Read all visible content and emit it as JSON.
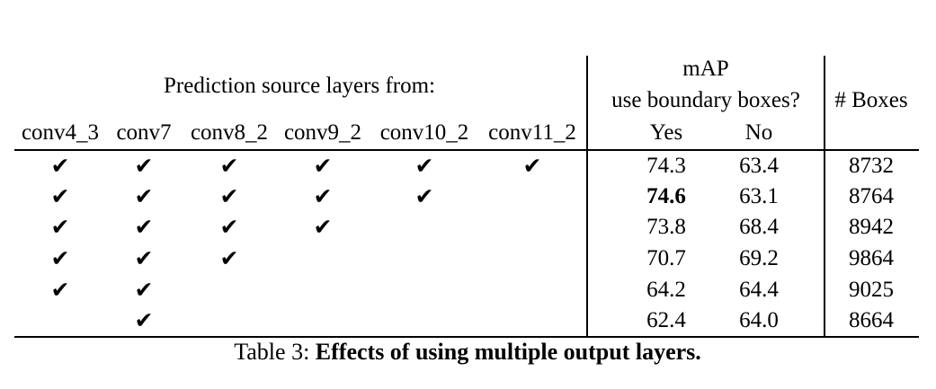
{
  "table": {
    "group_header_left": "Prediction source layers from:",
    "group_header_map": "mAP",
    "subheader_map": "use boundary boxes?",
    "header_boxes": "# Boxes",
    "layer_columns": [
      "conv4_3",
      "conv7",
      "conv8_2",
      "conv9_2",
      "conv10_2",
      "conv11_2"
    ],
    "map_columns": [
      "Yes",
      "No"
    ],
    "check_glyph": "✔",
    "rows": [
      {
        "layers": [
          true,
          true,
          true,
          true,
          true,
          true
        ],
        "yes": "74.3",
        "no": "63.4",
        "boxes": "8732",
        "yes_bold": false
      },
      {
        "layers": [
          true,
          true,
          true,
          true,
          true,
          false
        ],
        "yes": "74.6",
        "no": "63.1",
        "boxes": "8764",
        "yes_bold": true
      },
      {
        "layers": [
          true,
          true,
          true,
          true,
          false,
          false
        ],
        "yes": "73.8",
        "no": "68.4",
        "boxes": "8942",
        "yes_bold": false
      },
      {
        "layers": [
          true,
          true,
          true,
          false,
          false,
          false
        ],
        "yes": "70.7",
        "no": "69.2",
        "boxes": "9864",
        "yes_bold": false
      },
      {
        "layers": [
          true,
          true,
          false,
          false,
          false,
          false
        ],
        "yes": "64.2",
        "no": "64.4",
        "boxes": "9025",
        "yes_bold": false
      },
      {
        "layers": [
          false,
          true,
          false,
          false,
          false,
          false
        ],
        "yes": "62.4",
        "no": "64.0",
        "boxes": "8664",
        "yes_bold": false
      }
    ]
  },
  "caption": {
    "label": "Table 3:",
    "text": "Effects of using multiple output layers."
  }
}
